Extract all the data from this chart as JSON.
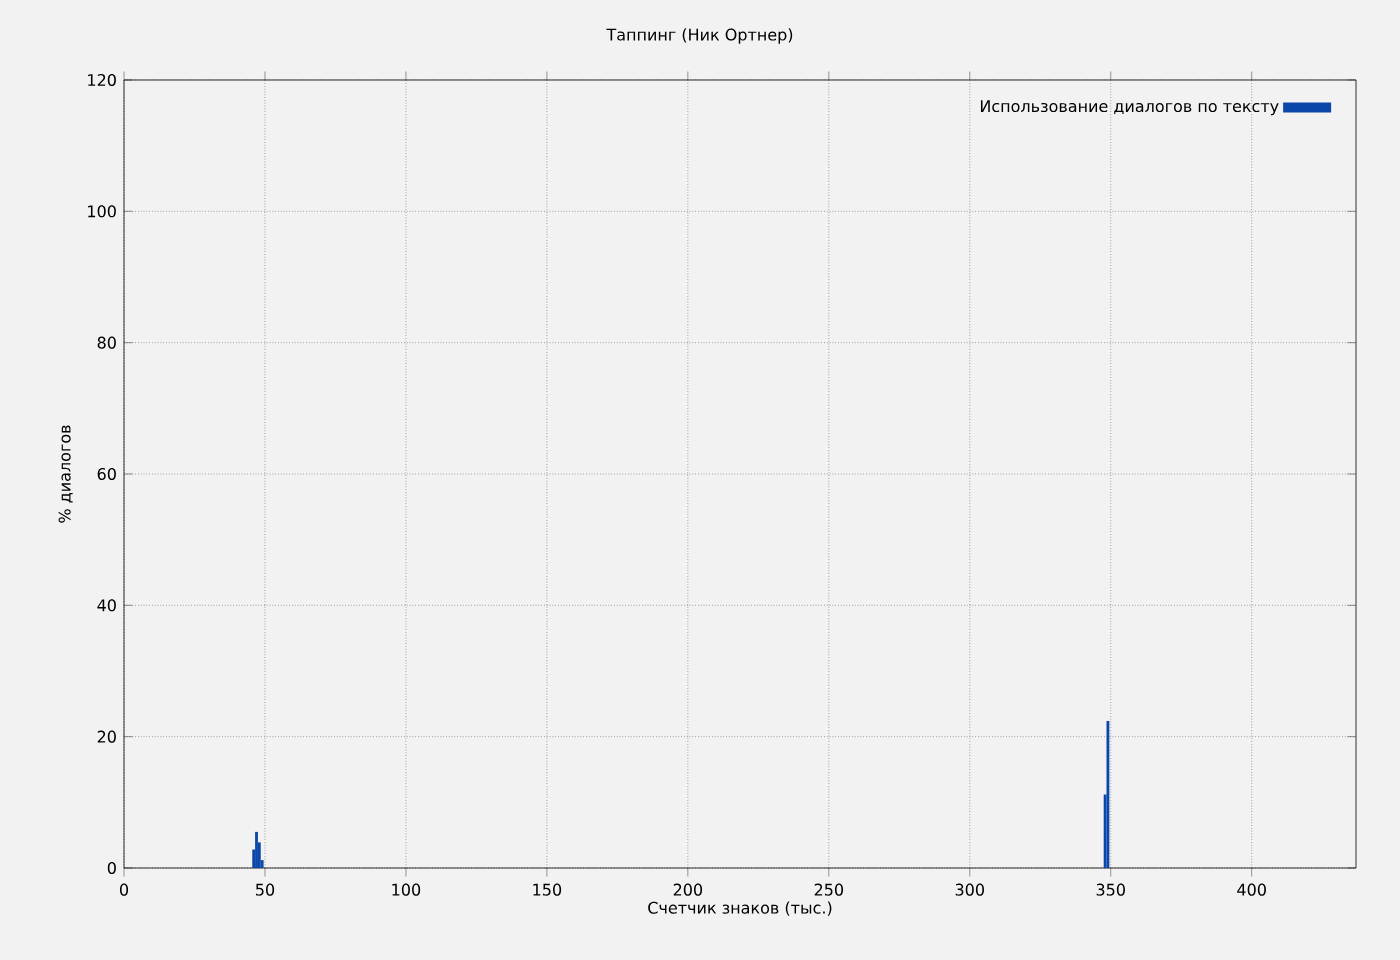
{
  "chart_data": {
    "type": "bar",
    "title": "Таппинг (Ник Ортнер)",
    "xlabel": "Счетчик знаков (тыс.)",
    "ylabel": "% диалогов",
    "x": [
      46,
      47,
      48,
      49,
      348,
      349
    ],
    "series": [
      {
        "name": "Использование диалогов по тексту",
        "color": "#0a47a8",
        "values": [
          2.8,
          5.5,
          3.9,
          1.2,
          11.2,
          22.4
        ]
      }
    ],
    "xlim": [
      0,
      437
    ],
    "ylim": [
      0,
      120
    ],
    "xticks": [
      0,
      50,
      100,
      150,
      200,
      250,
      300,
      350,
      400
    ],
    "yticks": [
      0,
      20,
      40,
      60,
      80,
      100,
      120
    ],
    "grid": true,
    "legend": "top right"
  }
}
